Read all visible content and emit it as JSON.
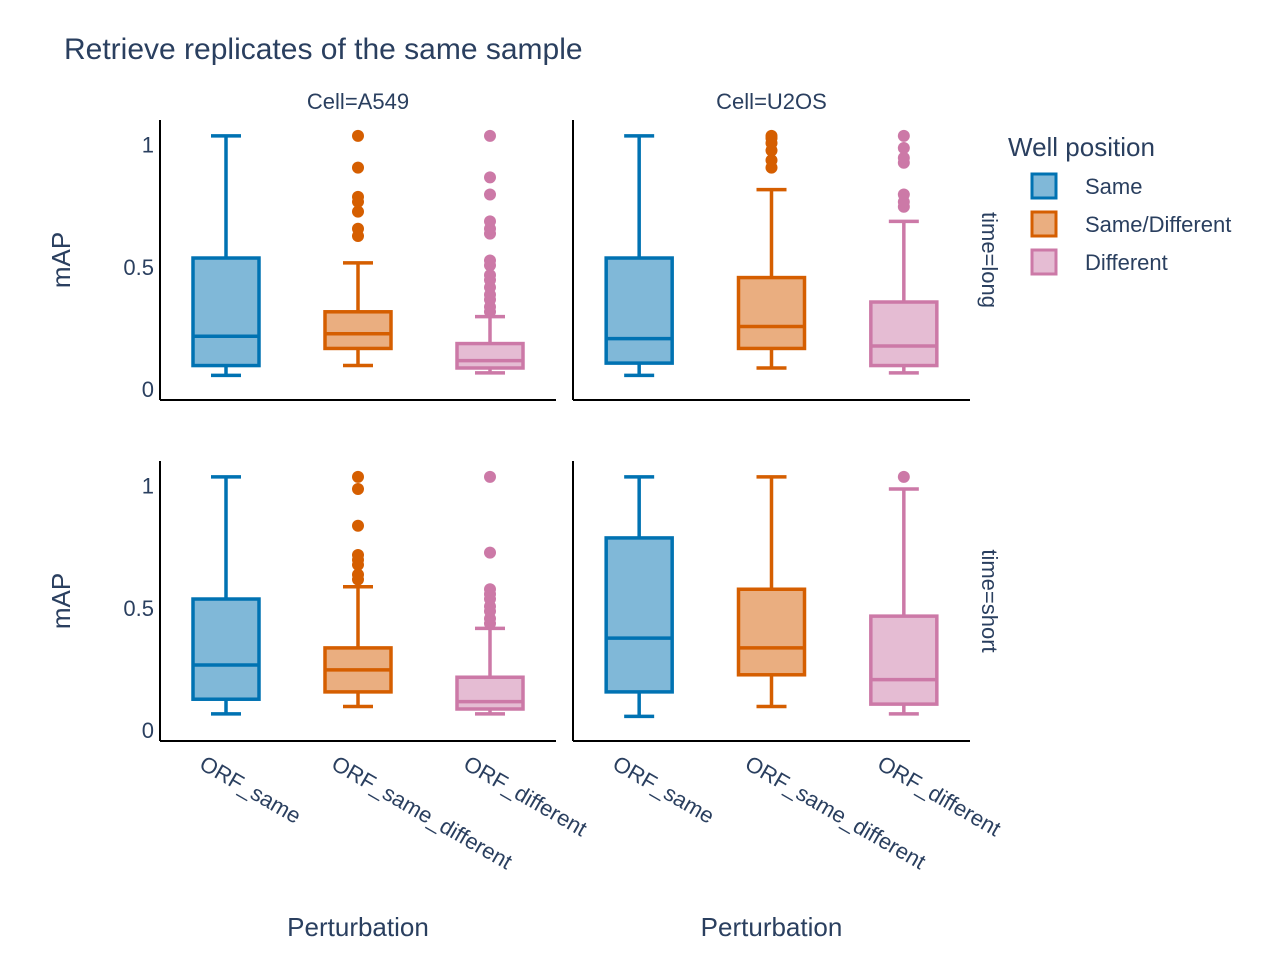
{
  "chart_data": {
    "type": "box",
    "title": "Retrieve replicates of the same sample",
    "ylabel": "mAP",
    "xlabel": "Perturbation",
    "ylim": [
      0,
      1
    ],
    "yticks": [
      {
        "value": 0,
        "label": "0"
      },
      {
        "value": 0.5,
        "label": "0.5"
      },
      {
        "value": 1,
        "label": "1"
      }
    ],
    "categories": [
      "ORF_same",
      "ORF_same_different",
      "ORF_different"
    ],
    "columns": [
      "Cell=A549",
      "Cell=U2OS"
    ],
    "rows": [
      "time=long",
      "time=short"
    ],
    "legend": {
      "title": "Well position",
      "position": "right",
      "entries": [
        {
          "name": "Same",
          "line": "#0072b2",
          "fill": "#80b8d8"
        },
        {
          "name": "Same/Different",
          "line": "#d55e00",
          "fill": "#eaae80"
        },
        {
          "name": "Different",
          "line": "#cc79a7",
          "fill": "#e5bcd3"
        }
      ]
    },
    "panels": [
      {
        "row": 0,
        "col": 0,
        "boxes": [
          {
            "category": "ORF_same",
            "min": 0.06,
            "q1": 0.1,
            "median": 0.22,
            "q3": 0.54,
            "max": 1.04,
            "outliers": []
          },
          {
            "category": "ORF_same_different",
            "min": 0.1,
            "q1": 0.17,
            "median": 0.23,
            "q3": 0.32,
            "max": 0.52,
            "outliers": [
              0.63,
              0.66,
              0.73,
              0.77,
              0.79,
              0.91,
              1.04
            ]
          },
          {
            "category": "ORF_different",
            "min": 0.07,
            "q1": 0.09,
            "median": 0.12,
            "q3": 0.19,
            "max": 0.3,
            "outliers": [
              0.32,
              0.34,
              0.37,
              0.39,
              0.42,
              0.45,
              0.47,
              0.51,
              0.53,
              0.64,
              0.66,
              0.69,
              0.8,
              0.87,
              1.04
            ]
          }
        ]
      },
      {
        "row": 0,
        "col": 1,
        "boxes": [
          {
            "category": "ORF_same",
            "min": 0.06,
            "q1": 0.11,
            "median": 0.21,
            "q3": 0.54,
            "max": 1.04,
            "outliers": []
          },
          {
            "category": "ORF_same_different",
            "min": 0.09,
            "q1": 0.17,
            "median": 0.26,
            "q3": 0.46,
            "max": 0.82,
            "outliers": [
              0.91,
              0.94,
              0.98,
              1.01,
              1.03,
              1.04
            ]
          },
          {
            "category": "ORF_different",
            "min": 0.07,
            "q1": 0.1,
            "median": 0.18,
            "q3": 0.36,
            "max": 0.69,
            "outliers": [
              0.75,
              0.77,
              0.8,
              0.93,
              0.95,
              0.99,
              1.04
            ]
          }
        ]
      },
      {
        "row": 1,
        "col": 0,
        "boxes": [
          {
            "category": "ORF_same",
            "min": 0.07,
            "q1": 0.13,
            "median": 0.27,
            "q3": 0.54,
            "max": 1.04,
            "outliers": []
          },
          {
            "category": "ORF_same_different",
            "min": 0.1,
            "q1": 0.16,
            "median": 0.25,
            "q3": 0.34,
            "max": 0.59,
            "outliers": [
              0.62,
              0.64,
              0.68,
              0.7,
              0.72,
              0.84,
              0.99,
              1.04
            ]
          },
          {
            "category": "ORF_different",
            "min": 0.07,
            "q1": 0.09,
            "median": 0.12,
            "q3": 0.22,
            "max": 0.42,
            "outliers": [
              0.44,
              0.46,
              0.49,
              0.51,
              0.54,
              0.56,
              0.58,
              0.73,
              1.04
            ]
          }
        ]
      },
      {
        "row": 1,
        "col": 1,
        "boxes": [
          {
            "category": "ORF_same",
            "min": 0.06,
            "q1": 0.16,
            "median": 0.38,
            "q3": 0.79,
            "max": 1.04,
            "outliers": []
          },
          {
            "category": "ORF_same_different",
            "min": 0.1,
            "q1": 0.23,
            "median": 0.34,
            "q3": 0.58,
            "max": 1.04,
            "outliers": []
          },
          {
            "category": "ORF_different",
            "min": 0.07,
            "q1": 0.11,
            "median": 0.21,
            "q3": 0.47,
            "max": 0.99,
            "outliers": [
              1.04
            ]
          }
        ]
      }
    ]
  }
}
